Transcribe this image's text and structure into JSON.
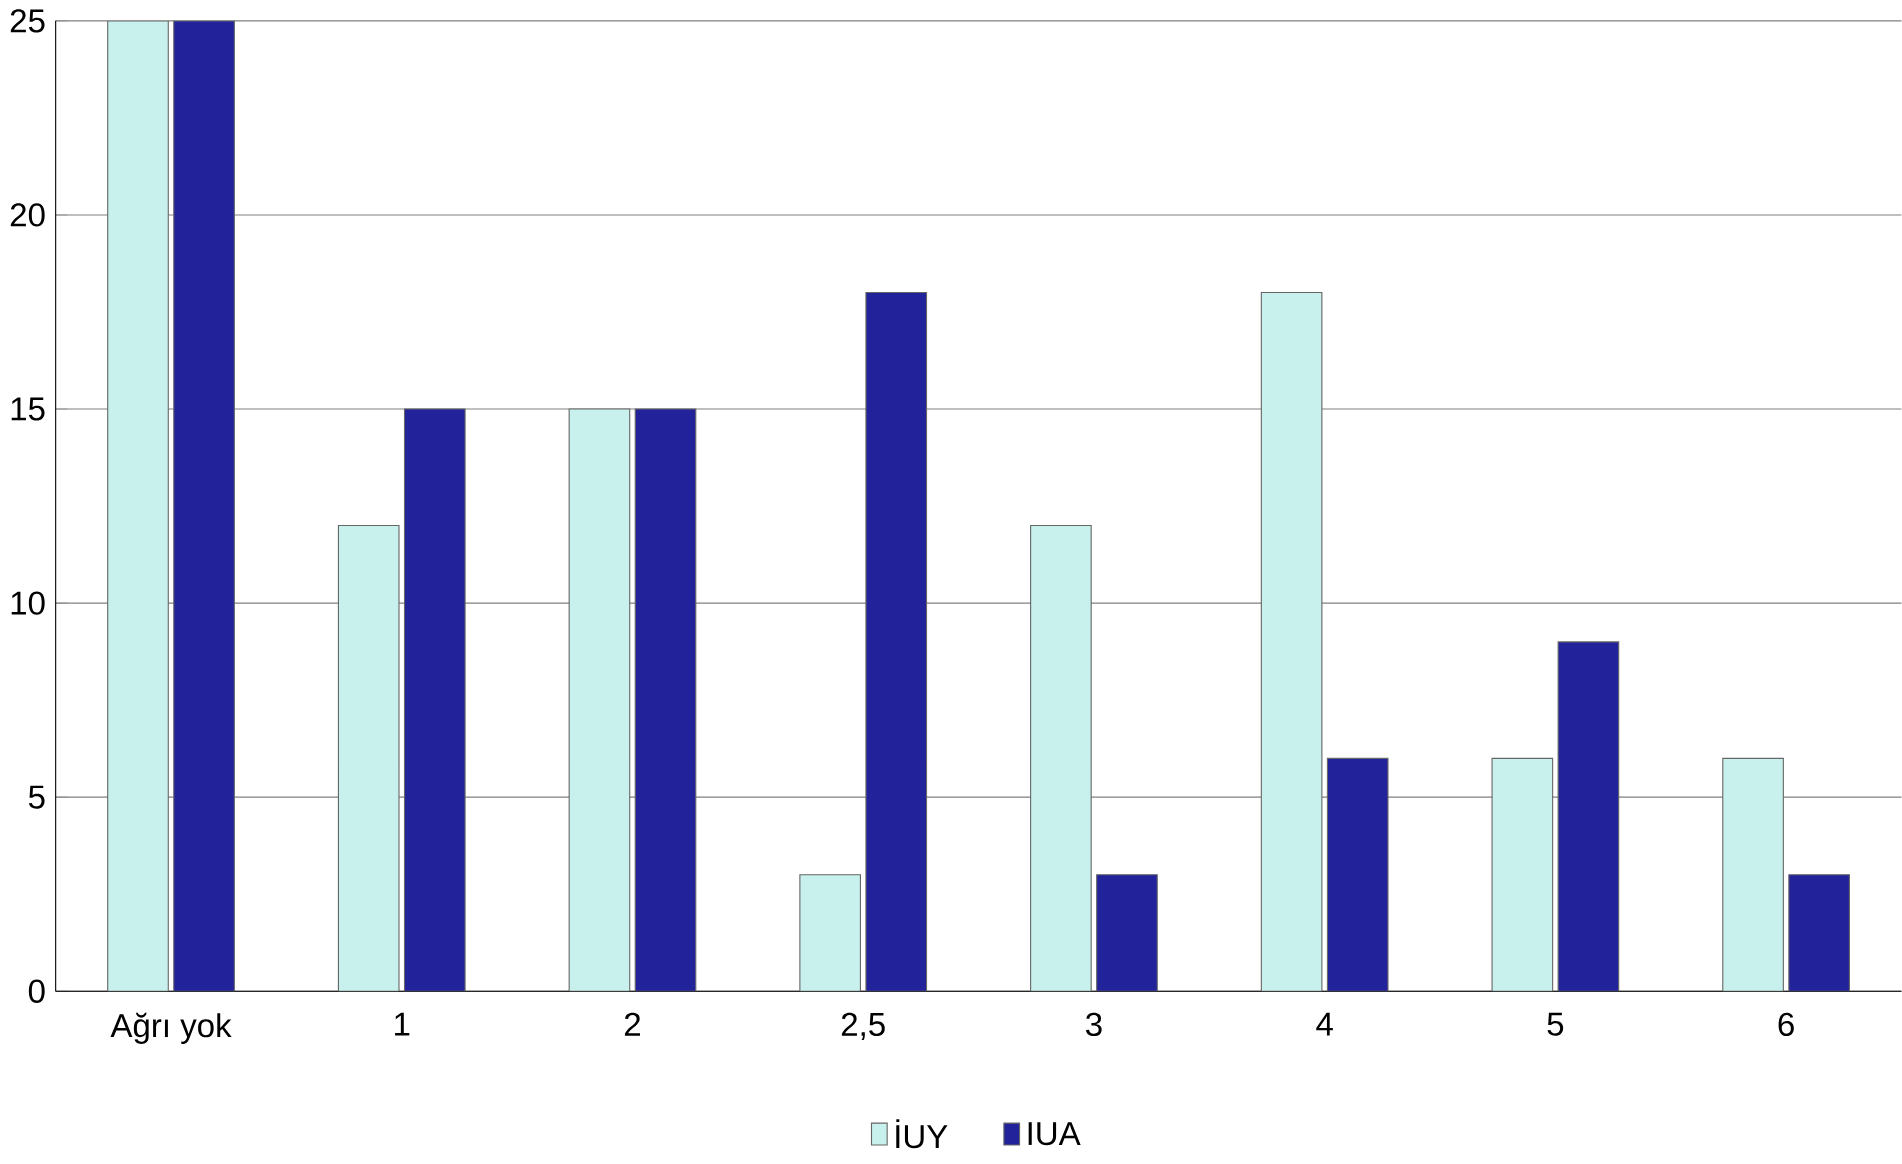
{
  "chart_data": {
    "type": "bar",
    "categories": [
      "Ağrı yok",
      "1",
      "2",
      "2,5",
      "3",
      "4",
      "5",
      "6"
    ],
    "series": [
      {
        "name": "İUY",
        "color": "#c8f0ec",
        "values": [
          25,
          12,
          15,
          3,
          12,
          18,
          6,
          6
        ]
      },
      {
        "name": "IUA",
        "color": "#22229a",
        "values": [
          25,
          15,
          15,
          18,
          3,
          6,
          9,
          3
        ]
      }
    ],
    "ylim": [
      0,
      25
    ],
    "yticks": [
      0,
      5,
      10,
      15,
      20,
      25
    ],
    "grid": "y",
    "legend": "bottom"
  }
}
